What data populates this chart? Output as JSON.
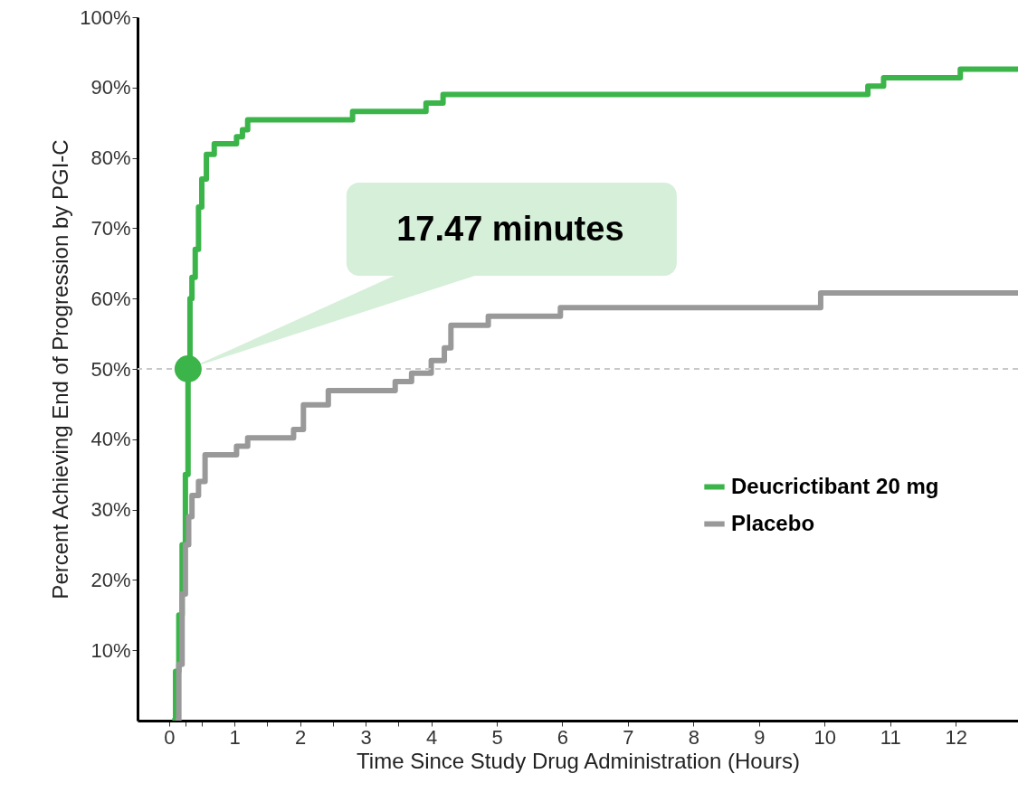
{
  "chart_data": {
    "type": "step",
    "xlabel": "Time Since Study Drug Administration (Hours)",
    "ylabel": "Percent Achieving End of Progression by PGI-C",
    "xlim": [
      -0.48,
      12.95
    ],
    "ylim": [
      0,
      100
    ],
    "xticks": [
      0,
      {
        "value": 0.25,
        "label": null
      },
      {
        "value": 0.5,
        "label": null
      },
      1,
      {
        "value": 1.5,
        "label": null
      },
      2,
      {
        "value": 2.5,
        "label": null
      },
      3,
      {
        "value": 3.5,
        "label": null
      },
      4,
      5,
      6,
      7,
      8,
      9,
      10,
      11,
      12
    ],
    "yticks": [
      {
        "value": 10,
        "label": "10%"
      },
      {
        "value": 20,
        "label": "20%"
      },
      {
        "value": 30,
        "label": "30%"
      },
      {
        "value": 40,
        "label": "40%"
      },
      {
        "value": 50,
        "label": "50%"
      },
      {
        "value": 60,
        "label": "60%"
      },
      {
        "value": 70,
        "label": "70%"
      },
      {
        "value": 80,
        "label": "80%"
      },
      {
        "value": 90,
        "label": "90%"
      },
      {
        "value": 100,
        "label": "100%"
      }
    ],
    "series": [
      {
        "name": "Deucrictibant 20 mg",
        "color": "#3bb54a",
        "x": [
          0.05,
          0.1,
          0.15,
          0.2,
          0.25,
          0.29,
          0.32,
          0.35,
          0.4,
          0.45,
          0.5,
          0.57,
          0.69,
          1.03,
          1.12,
          1.2,
          2.8,
          3.92,
          4.18,
          10.66,
          10.9,
          12.07,
          12.95
        ],
        "values": [
          0,
          7,
          15,
          25,
          35,
          50,
          60,
          63,
          67,
          73,
          77,
          80.5,
          82,
          83,
          84,
          85.4,
          86.6,
          87.8,
          89,
          90.2,
          91.4,
          92.6,
          92.6
        ]
      },
      {
        "name": "Placebo",
        "color": "#999999",
        "x": [
          0.1,
          0.15,
          0.2,
          0.25,
          0.3,
          0.35,
          0.45,
          0.55,
          1.03,
          1.2,
          1.9,
          2.05,
          2.43,
          3.45,
          3.7,
          4.0,
          4.2,
          4.3,
          4.87,
          5.97,
          9.94,
          12.95
        ],
        "values": [
          0,
          8,
          18,
          25,
          29,
          32,
          34,
          37.8,
          39,
          40.2,
          41.4,
          44.9,
          46.9,
          48.2,
          49.4,
          51.2,
          53,
          56.2,
          57.5,
          58.7,
          60.8,
          60.8
        ]
      }
    ],
    "ref_lines": [
      {
        "axis": "y",
        "value": 50,
        "color": "#c8c8c8",
        "line_style": "dashed"
      }
    ],
    "annotations": [
      {
        "text": "17.47 minutes",
        "x": 0.291,
        "y": 50
      }
    ],
    "legend": "right",
    "grid": false
  }
}
